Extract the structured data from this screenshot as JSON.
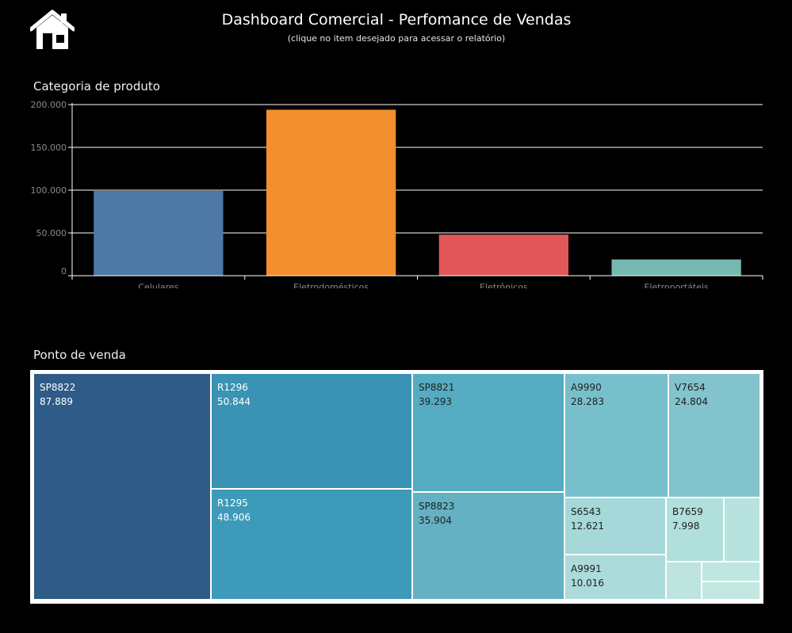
{
  "header": {
    "title": "Dashboard Comercial - Perfomance de Vendas",
    "subtitle": "(clique no item desejado para acessar o relatório)"
  },
  "icons": {
    "home": "home-icon"
  },
  "sections": {
    "category": "Categoria de produto",
    "point_of_sale": "Ponto de venda"
  },
  "chart_data": [
    {
      "type": "bar",
      "title": "Categoria de produto",
      "categories": [
        "Celulares",
        "Eletrodomésticos",
        "Eletrônicos",
        "Eletroportáteis"
      ],
      "values": [
        99000,
        194000,
        48000,
        19000
      ],
      "colors": [
        "#4e79a7",
        "#f28e2b",
        "#e15759",
        "#76b7b2"
      ],
      "ylim": [
        0,
        200000
      ],
      "yticks": [
        0,
        50000,
        100000,
        150000,
        200000
      ],
      "ytick_labels": [
        "0",
        "50.000",
        "100.000",
        "150.000",
        "200.000"
      ],
      "grid": true
    },
    {
      "type": "treemap",
      "title": "Ponto de venda",
      "items": [
        {
          "label": "SP8822",
          "value": 87889,
          "value_label": "87.889"
        },
        {
          "label": "R1296",
          "value": 50844,
          "value_label": "50.844"
        },
        {
          "label": "R1295",
          "value": 48906,
          "value_label": "48.906"
        },
        {
          "label": "SP8821",
          "value": 39293,
          "value_label": "39.293"
        },
        {
          "label": "SP8823",
          "value": 35904,
          "value_label": "35.904"
        },
        {
          "label": "A9990",
          "value": 28283,
          "value_label": "28.283"
        },
        {
          "label": "V7654",
          "value": 24804,
          "value_label": "24.804"
        },
        {
          "label": "S6543",
          "value": 12621,
          "value_label": "12.621"
        },
        {
          "label": "A9991",
          "value": 10016,
          "value_label": "10.016"
        },
        {
          "label": "B7659",
          "value": 7998,
          "value_label": "7.998"
        },
        {
          "label": "",
          "value": 5200,
          "value_label": ""
        },
        {
          "label": "",
          "value": 3300,
          "value_label": ""
        },
        {
          "label": "",
          "value": 2400,
          "value_label": ""
        },
        {
          "label": "",
          "value": 2300,
          "value_label": ""
        }
      ]
    }
  ]
}
